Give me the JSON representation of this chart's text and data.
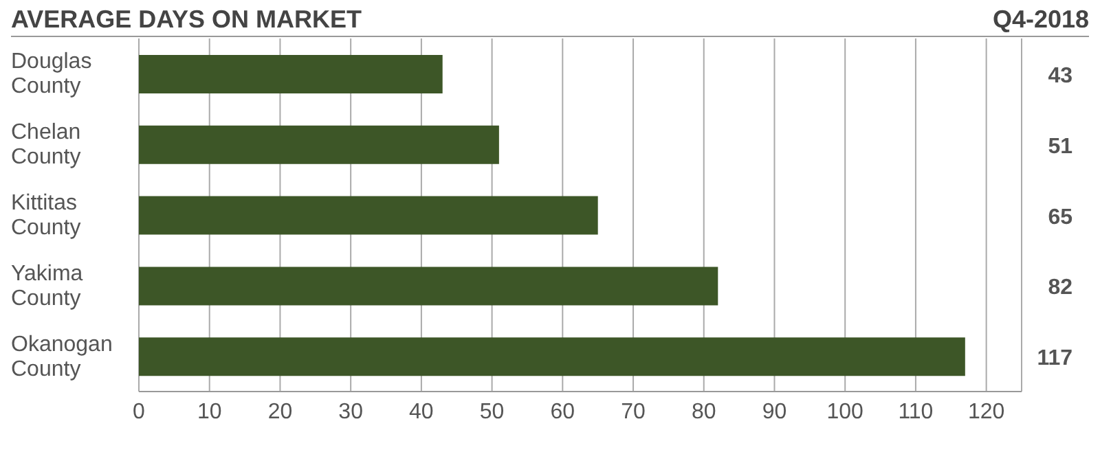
{
  "chart_data": {
    "type": "bar",
    "orientation": "horizontal",
    "title": "AVERAGE DAYS ON MARKET",
    "subtitle": "Q4-2018",
    "categories": [
      "Douglas County",
      "Chelan County",
      "Kittitas County",
      "Yakima County",
      "Okanogan County"
    ],
    "values": [
      43,
      51,
      65,
      82,
      117
    ],
    "color": "#3d5627",
    "xlim": [
      0,
      125
    ],
    "xticks": [
      0,
      10,
      20,
      30,
      40,
      50,
      60,
      70,
      80,
      90,
      100,
      110,
      120
    ],
    "grid": "x",
    "data_labels": true,
    "legend": false
  }
}
